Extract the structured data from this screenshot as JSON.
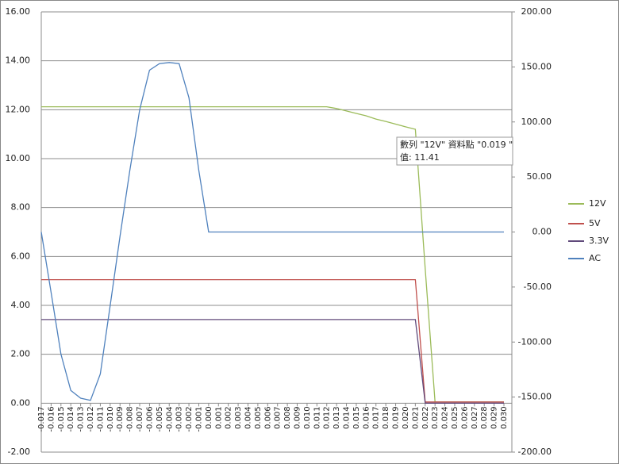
{
  "chart_data": {
    "type": "line",
    "categories": [
      "-0.017",
      "-0.016",
      "-0.015",
      "-0.014",
      "-0.013",
      "-0.012",
      "-0.011",
      "-0.010",
      "-0.009",
      "-0.008",
      "-0.007",
      "-0.006",
      "-0.005",
      "-0.004",
      "-0.003",
      "-0.002",
      "-0.001",
      "0.000",
      "0.001",
      "0.002",
      "0.003",
      "0.004",
      "0.005",
      "0.006",
      "0.007",
      "0.008",
      "0.009",
      "0.010",
      "0.011",
      "0.012",
      "0.013",
      "0.014",
      "0.015",
      "0.016",
      "0.017",
      "0.018",
      "0.019",
      "0.020",
      "0.021",
      "0.022",
      "0.023",
      "0.024",
      "0.025",
      "0.026",
      "0.027",
      "0.028",
      "0.029",
      "0.030"
    ],
    "series": [
      {
        "name": "12V",
        "color": "#9bbb59",
        "values": [
          12.12,
          12.12,
          12.12,
          12.12,
          12.12,
          12.12,
          12.12,
          12.12,
          12.12,
          12.12,
          12.12,
          12.12,
          12.12,
          12.12,
          12.12,
          12.12,
          12.12,
          12.12,
          12.12,
          12.12,
          12.12,
          12.12,
          12.12,
          12.12,
          12.12,
          12.12,
          12.12,
          12.12,
          12.12,
          12.12,
          12.05,
          11.95,
          11.85,
          11.75,
          11.62,
          11.52,
          11.41,
          11.3,
          11.2,
          5.5,
          0.05,
          0.05,
          0.05,
          0.05,
          0.05,
          0.05,
          0.05,
          0.05
        ]
      },
      {
        "name": "5V",
        "color": "#c0504d",
        "values": [
          5.05,
          5.05,
          5.05,
          5.05,
          5.05,
          5.05,
          5.05,
          5.05,
          5.05,
          5.05,
          5.05,
          5.05,
          5.05,
          5.05,
          5.05,
          5.05,
          5.05,
          5.05,
          5.05,
          5.05,
          5.05,
          5.05,
          5.05,
          5.05,
          5.05,
          5.05,
          5.05,
          5.05,
          5.05,
          5.05,
          5.05,
          5.05,
          5.05,
          5.05,
          5.05,
          5.05,
          5.05,
          5.05,
          5.05,
          0.05,
          0.05,
          0.05,
          0.05,
          0.05,
          0.05,
          0.05,
          0.05,
          0.05
        ]
      },
      {
        "name": "3.3V",
        "color": "#604a7b",
        "values": [
          3.42,
          3.42,
          3.42,
          3.42,
          3.42,
          3.42,
          3.42,
          3.42,
          3.42,
          3.42,
          3.42,
          3.42,
          3.42,
          3.42,
          3.42,
          3.42,
          3.42,
          3.42,
          3.42,
          3.42,
          3.42,
          3.42,
          3.42,
          3.42,
          3.42,
          3.42,
          3.42,
          3.42,
          3.42,
          3.42,
          3.42,
          3.42,
          3.42,
          3.42,
          3.42,
          3.42,
          3.42,
          3.42,
          3.42,
          0.0,
          0.0,
          0.0,
          0.0,
          0.0,
          0.0,
          0.0,
          0.0,
          0.0
        ]
      },
      {
        "name": "AC",
        "color": "#4f81bd",
        "axis": "y2",
        "values": [
          0,
          -55,
          -111,
          -144,
          -151,
          -153,
          -129,
          -67,
          -4,
          56,
          111,
          147,
          153,
          154,
          153,
          122,
          56,
          0,
          0,
          0,
          0,
          0,
          0,
          0,
          0,
          0,
          0,
          0,
          0,
          0,
          0,
          0,
          0,
          0,
          0,
          0,
          0,
          0,
          0,
          0,
          0,
          0,
          0,
          0,
          0,
          0,
          0,
          0
        ]
      }
    ],
    "ylim": [
      -2,
      16
    ],
    "yticks": [
      {
        "value": -2,
        "label": "-2.00"
      },
      {
        "value": 0,
        "label": "0.00"
      },
      {
        "value": 2,
        "label": "2.00"
      },
      {
        "value": 4,
        "label": "4.00"
      },
      {
        "value": 6,
        "label": "6.00"
      },
      {
        "value": 8,
        "label": "8.00"
      },
      {
        "value": 10,
        "label": "10.00"
      },
      {
        "value": 12,
        "label": "12.00"
      },
      {
        "value": 14,
        "label": "14.00"
      },
      {
        "value": 16,
        "label": "16.00"
      }
    ],
    "y2lim": [
      -200,
      200
    ],
    "y2ticks": [
      {
        "value": -200,
        "label": "-200.00"
      },
      {
        "value": -150,
        "label": "-150.00"
      },
      {
        "value": -100,
        "label": "-100.00"
      },
      {
        "value": -50,
        "label": "-50.00"
      },
      {
        "value": 0,
        "label": "0.00"
      },
      {
        "value": 50,
        "label": "50.00"
      },
      {
        "value": 100,
        "label": "100.00"
      },
      {
        "value": 150,
        "label": "150.00"
      },
      {
        "value": 200,
        "label": "200.00"
      }
    ],
    "grid": true,
    "legend": "right",
    "annotations": [
      "數列 \"12V\" 資料點 \"0.019 \"",
      "值: 11.41"
    ]
  }
}
